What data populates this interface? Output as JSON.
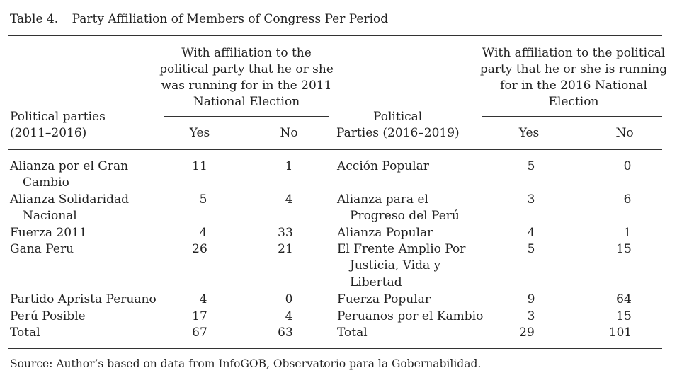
{
  "caption": {
    "label": "Table 4.",
    "title": "Party Affiliation of Members of Congress Per Period"
  },
  "header": {
    "left_party_col": [
      "Political parties",
      "(2011–2016)"
    ],
    "group_2011": [
      "With affiliation to the",
      "political party that he or she",
      "was running for in the 2011",
      "National Election"
    ],
    "yes": "Yes",
    "no": "No",
    "right_party_col": [
      "Political",
      "Parties (2016–2019)"
    ],
    "group_2016": [
      "With affiliation to the political",
      "party that he or she is running",
      "for in the 2016 National",
      "Election"
    ]
  },
  "left_rows": [
    {
      "party": [
        "Alianza por el Gran",
        "Cambio"
      ],
      "yes": "11",
      "no": "1"
    },
    {
      "party": [
        "Alianza Solidaridad",
        "Nacional"
      ],
      "yes": "5",
      "no": "4"
    },
    {
      "party": [
        "Fuerza 2011"
      ],
      "yes": "4",
      "no": "33"
    },
    {
      "party": [
        "Gana Peru"
      ],
      "yes": "26",
      "no": "21"
    },
    {
      "party": [
        "Partido Aprista Peruano"
      ],
      "yes": "4",
      "no": "0"
    },
    {
      "party": [
        "Perú Posible"
      ],
      "yes": "17",
      "no": "4"
    },
    {
      "party": [
        "Total"
      ],
      "yes": "67",
      "no": "63"
    }
  ],
  "right_rows": [
    {
      "party": [
        "Acción Popular"
      ],
      "yes": "5",
      "no": "0"
    },
    {
      "party": [
        "Alianza para el",
        "Progreso del Perú"
      ],
      "yes": "3",
      "no": "6"
    },
    {
      "party": [
        "Alianza Popular"
      ],
      "yes": "4",
      "no": "1"
    },
    {
      "party": [
        "El Frente Amplio Por",
        "Justicia, Vida y",
        "Libertad"
      ],
      "yes": "5",
      "no": "15"
    },
    {
      "party": [
        "Fuerza Popular"
      ],
      "yes": "9",
      "no": "64"
    },
    {
      "party": [
        "Peruanos por el Kambio"
      ],
      "yes": "3",
      "no": "15"
    },
    {
      "party": [
        "Total"
      ],
      "yes": "29",
      "no": "101"
    }
  ],
  "source": "Source: Author’s based on data from InfoGOB, Observatorio para la Gobernabilidad."
}
